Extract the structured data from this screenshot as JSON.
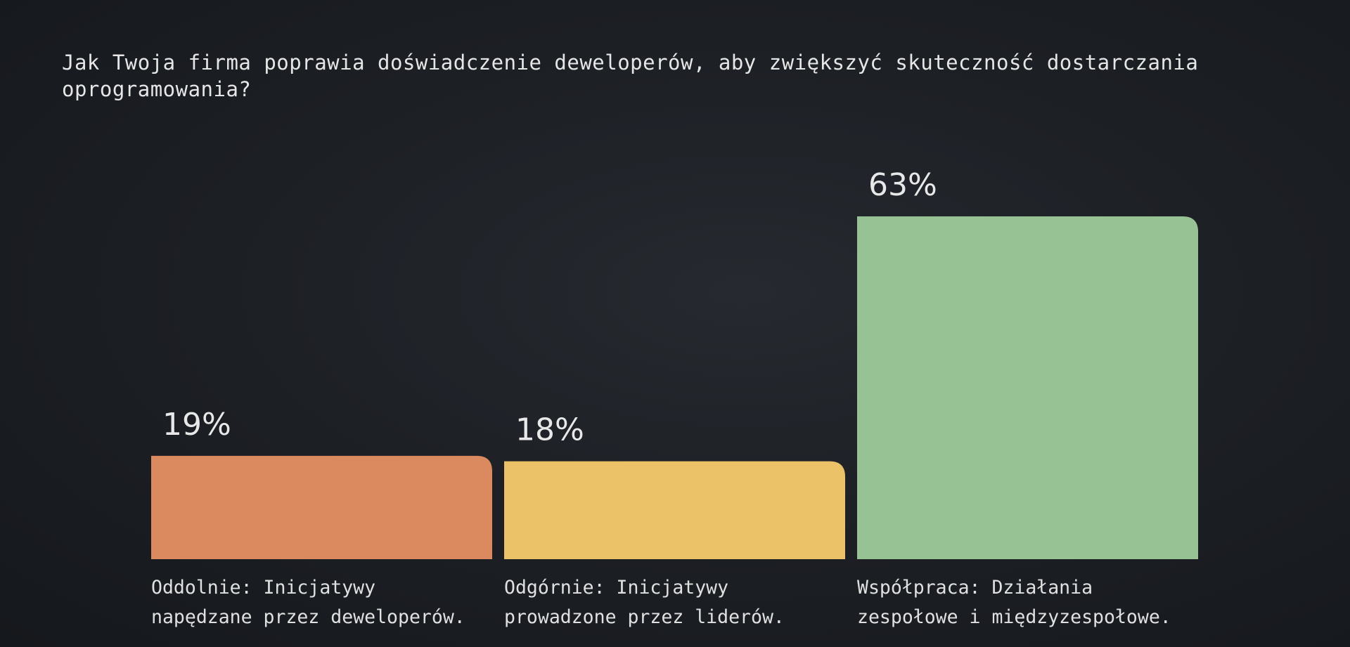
{
  "question": "Jak Twoja firma poprawia doświadczenie deweloperów, aby zwiększyć skuteczność dostarczania oprogramowania?",
  "chart_data": {
    "type": "bar",
    "categories": [
      [
        "Oddolnie: Inicjatywy",
        "napędzane przez deweloperów."
      ],
      [
        "Odgórnie: Inicjatywy",
        "prowadzone przez liderów."
      ],
      [
        "Współpraca: Działania",
        "zespołowe i międzyzespołowe."
      ]
    ],
    "values": [
      19,
      18,
      63
    ],
    "value_labels": [
      "19%",
      "18%",
      "63%"
    ],
    "colors": [
      "#db8a5f",
      "#ecc268",
      "#97c293"
    ],
    "ylim": [
      0,
      63
    ],
    "grid": false,
    "legend": "none"
  }
}
